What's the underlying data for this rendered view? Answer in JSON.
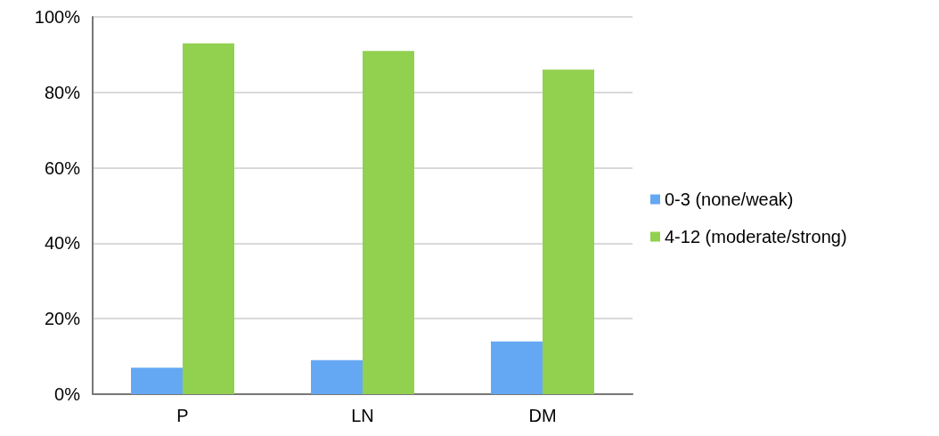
{
  "chart_data": {
    "type": "bar",
    "categories": [
      "P",
      "LN",
      "DM"
    ],
    "series": [
      {
        "name": "0-3 (none/weak)",
        "color": "#64a8f4",
        "values": [
          7,
          9,
          14
        ]
      },
      {
        "name": "4-12 (moderate/strong)",
        "color": "#92d050",
        "values": [
          93,
          91,
          86
        ]
      }
    ],
    "ylim": [
      0,
      100
    ],
    "yticks": [
      {
        "value": 0,
        "label": "0%"
      },
      {
        "value": 20,
        "label": "20%"
      },
      {
        "value": 40,
        "label": "40%"
      },
      {
        "value": 60,
        "label": "60%"
      },
      {
        "value": 80,
        "label": "80%"
      },
      {
        "value": 100,
        "label": "100%"
      }
    ],
    "grid": "y",
    "legend": "right"
  }
}
